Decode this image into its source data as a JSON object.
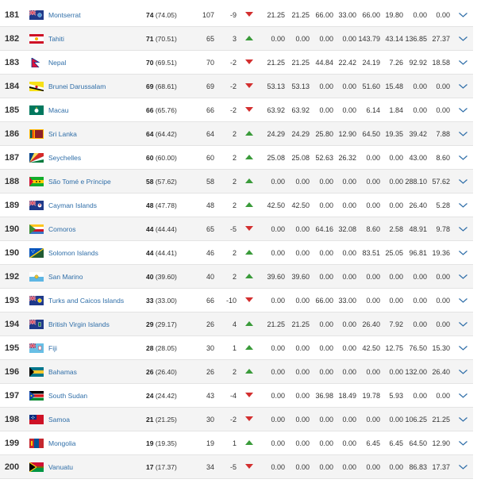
{
  "colors": {
    "up": "#3a9b3a",
    "down": "#d32f2f",
    "link": "#2f6ea8",
    "chevron": "#2f6ea8"
  },
  "rows": [
    {
      "rank": "181",
      "name": "Montserrat",
      "pts": "74",
      "pts_exact": "(74.05)",
      "prev": "107",
      "change": "-9",
      "trend": "down",
      "vals": [
        "21.25",
        "21.25",
        "66.00",
        "33.00",
        "66.00",
        "19.80",
        "0.00",
        "0.00"
      ],
      "flag": "montserrat-flag-icon"
    },
    {
      "rank": "182",
      "name": "Tahiti",
      "pts": "71",
      "pts_exact": "(70.51)",
      "prev": "65",
      "change": "3",
      "trend": "up",
      "vals": [
        "0.00",
        "0.00",
        "0.00",
        "0.00",
        "143.79",
        "43.14",
        "136.85",
        "27.37"
      ],
      "flag": "tahiti-flag-icon"
    },
    {
      "rank": "183",
      "name": "Nepal",
      "pts": "70",
      "pts_exact": "(69.51)",
      "prev": "70",
      "change": "-2",
      "trend": "down",
      "vals": [
        "21.25",
        "21.25",
        "44.84",
        "22.42",
        "24.19",
        "7.26",
        "92.92",
        "18.58"
      ],
      "flag": "nepal-flag-icon"
    },
    {
      "rank": "184",
      "name": "Brunei Darussalam",
      "pts": "69",
      "pts_exact": "(68.61)",
      "prev": "69",
      "change": "-2",
      "trend": "down",
      "vals": [
        "53.13",
        "53.13",
        "0.00",
        "0.00",
        "51.60",
        "15.48",
        "0.00",
        "0.00"
      ],
      "flag": "brunei-flag-icon"
    },
    {
      "rank": "185",
      "name": "Macau",
      "pts": "66",
      "pts_exact": "(65.76)",
      "prev": "66",
      "change": "-2",
      "trend": "down",
      "vals": [
        "63.92",
        "63.92",
        "0.00",
        "0.00",
        "6.14",
        "1.84",
        "0.00",
        "0.00"
      ],
      "flag": "macau-flag-icon"
    },
    {
      "rank": "186",
      "name": "Sri Lanka",
      "pts": "64",
      "pts_exact": "(64.42)",
      "prev": "64",
      "change": "2",
      "trend": "up",
      "vals": [
        "24.29",
        "24.29",
        "25.80",
        "12.90",
        "64.50",
        "19.35",
        "39.42",
        "7.88"
      ],
      "flag": "sri-lanka-flag-icon"
    },
    {
      "rank": "187",
      "name": "Seychelles",
      "pts": "60",
      "pts_exact": "(60.00)",
      "prev": "60",
      "change": "2",
      "trend": "up",
      "vals": [
        "25.08",
        "25.08",
        "52.63",
        "26.32",
        "0.00",
        "0.00",
        "43.00",
        "8.60"
      ],
      "flag": "seychelles-flag-icon"
    },
    {
      "rank": "188",
      "name": "São Tomé e Príncipe",
      "pts": "58",
      "pts_exact": "(57.62)",
      "prev": "58",
      "change": "2",
      "trend": "up",
      "vals": [
        "0.00",
        "0.00",
        "0.00",
        "0.00",
        "0.00",
        "0.00",
        "288.10",
        "57.62"
      ],
      "flag": "sao-tome-flag-icon"
    },
    {
      "rank": "189",
      "name": "Cayman Islands",
      "pts": "48",
      "pts_exact": "(47.78)",
      "prev": "48",
      "change": "2",
      "trend": "up",
      "vals": [
        "42.50",
        "42.50",
        "0.00",
        "0.00",
        "0.00",
        "0.00",
        "26.40",
        "5.28"
      ],
      "flag": "cayman-islands-flag-icon"
    },
    {
      "rank": "190",
      "name": "Comoros",
      "pts": "44",
      "pts_exact": "(44.44)",
      "prev": "65",
      "change": "-5",
      "trend": "down",
      "vals": [
        "0.00",
        "0.00",
        "64.16",
        "32.08",
        "8.60",
        "2.58",
        "48.91",
        "9.78"
      ],
      "flag": "comoros-flag-icon"
    },
    {
      "rank": "190",
      "name": "Solomon Islands",
      "pts": "44",
      "pts_exact": "(44.41)",
      "prev": "46",
      "change": "2",
      "trend": "up",
      "vals": [
        "0.00",
        "0.00",
        "0.00",
        "0.00",
        "83.51",
        "25.05",
        "96.81",
        "19.36"
      ],
      "flag": "solomon-islands-flag-icon"
    },
    {
      "rank": "192",
      "name": "San Marino",
      "pts": "40",
      "pts_exact": "(39.60)",
      "prev": "40",
      "change": "2",
      "trend": "up",
      "vals": [
        "39.60",
        "39.60",
        "0.00",
        "0.00",
        "0.00",
        "0.00",
        "0.00",
        "0.00"
      ],
      "flag": "san-marino-flag-icon"
    },
    {
      "rank": "193",
      "name": "Turks and Caicos Islands",
      "pts": "33",
      "pts_exact": "(33.00)",
      "prev": "66",
      "change": "-10",
      "trend": "down",
      "vals": [
        "0.00",
        "0.00",
        "66.00",
        "33.00",
        "0.00",
        "0.00",
        "0.00",
        "0.00"
      ],
      "flag": "turks-caicos-flag-icon"
    },
    {
      "rank": "194",
      "name": "British Virgin Islands",
      "pts": "29",
      "pts_exact": "(29.17)",
      "prev": "26",
      "change": "4",
      "trend": "up",
      "vals": [
        "21.25",
        "21.25",
        "0.00",
        "0.00",
        "26.40",
        "7.92",
        "0.00",
        "0.00"
      ],
      "flag": "british-virgin-islands-flag-icon"
    },
    {
      "rank": "195",
      "name": "Fiji",
      "pts": "28",
      "pts_exact": "(28.05)",
      "prev": "30",
      "change": "1",
      "trend": "up",
      "vals": [
        "0.00",
        "0.00",
        "0.00",
        "0.00",
        "42.50",
        "12.75",
        "76.50",
        "15.30"
      ],
      "flag": "fiji-flag-icon"
    },
    {
      "rank": "196",
      "name": "Bahamas",
      "pts": "26",
      "pts_exact": "(26.40)",
      "prev": "26",
      "change": "2",
      "trend": "up",
      "vals": [
        "0.00",
        "0.00",
        "0.00",
        "0.00",
        "0.00",
        "0.00",
        "132.00",
        "26.40"
      ],
      "flag": "bahamas-flag-icon"
    },
    {
      "rank": "197",
      "name": "South Sudan",
      "pts": "24",
      "pts_exact": "(24.42)",
      "prev": "43",
      "change": "-4",
      "trend": "down",
      "vals": [
        "0.00",
        "0.00",
        "36.98",
        "18.49",
        "19.78",
        "5.93",
        "0.00",
        "0.00"
      ],
      "flag": "south-sudan-flag-icon"
    },
    {
      "rank": "198",
      "name": "Samoa",
      "pts": "21",
      "pts_exact": "(21.25)",
      "prev": "30",
      "change": "-2",
      "trend": "down",
      "vals": [
        "0.00",
        "0.00",
        "0.00",
        "0.00",
        "0.00",
        "0.00",
        "106.25",
        "21.25"
      ],
      "flag": "samoa-flag-icon"
    },
    {
      "rank": "199",
      "name": "Mongolia",
      "pts": "19",
      "pts_exact": "(19.35)",
      "prev": "19",
      "change": "1",
      "trend": "up",
      "vals": [
        "0.00",
        "0.00",
        "0.00",
        "0.00",
        "6.45",
        "6.45",
        "64.50",
        "12.90"
      ],
      "flag": "mongolia-flag-icon"
    },
    {
      "rank": "200",
      "name": "Vanuatu",
      "pts": "17",
      "pts_exact": "(17.37)",
      "prev": "34",
      "change": "-5",
      "trend": "down",
      "vals": [
        "0.00",
        "0.00",
        "0.00",
        "0.00",
        "0.00",
        "0.00",
        "86.83",
        "17.37"
      ],
      "flag": "vanuatu-flag-icon"
    }
  ]
}
